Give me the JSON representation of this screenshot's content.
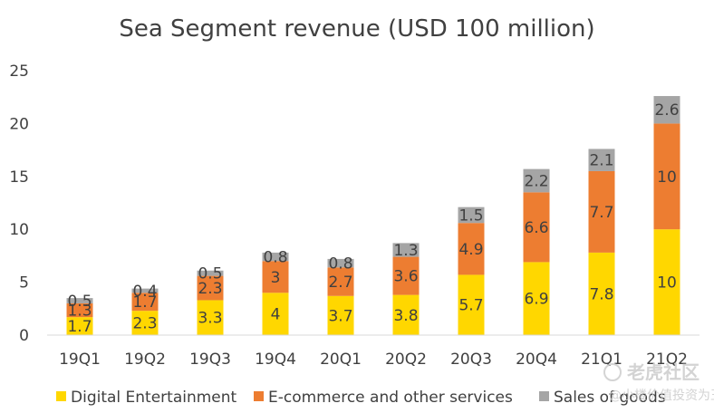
{
  "chart_data": {
    "type": "bar",
    "stacked": true,
    "title": "Sea Segment revenue (USD 100 million)",
    "categories": [
      "19Q1",
      "19Q2",
      "19Q3",
      "19Q4",
      "20Q1",
      "20Q2",
      "20Q3",
      "20Q4",
      "21Q1",
      "21Q2"
    ],
    "series": [
      {
        "name": "Digital Entertainment",
        "color": "#FFD700",
        "values": [
          1.7,
          2.3,
          3.3,
          4,
          3.7,
          3.8,
          5.7,
          6.9,
          7.8,
          10
        ],
        "labels": [
          "1.7",
          "2.3",
          "3.3",
          "4",
          "3.7",
          "3.8",
          "5.7",
          "6.9",
          "7.8",
          "10"
        ]
      },
      {
        "name": "E-commerce and other services",
        "color": "#ED7D31",
        "values": [
          1.3,
          1.7,
          2.3,
          3,
          2.7,
          3.6,
          4.9,
          6.6,
          7.7,
          10
        ],
        "labels": [
          "1.3",
          "1.7",
          "2.3",
          "3",
          "2.7",
          "3.6",
          "4.9",
          "6.6",
          "7.7",
          "10"
        ]
      },
      {
        "name": "Sales of goods",
        "color": "#A5A5A5",
        "values": [
          0.5,
          0.4,
          0.5,
          0.8,
          0.8,
          1.3,
          1.5,
          2.2,
          2.1,
          2.6
        ],
        "labels": [
          "0.5",
          "0.4",
          "0.5",
          "0.8",
          "0.8",
          "1.3",
          "1.5",
          "2.2",
          "2.1",
          "2.6"
        ]
      }
    ],
    "ylim": [
      0,
      25
    ],
    "yticks": [
      "0",
      "5",
      "10",
      "15",
      "20",
      "25"
    ],
    "ytick_values": [
      0,
      5,
      10,
      15,
      20,
      25
    ],
    "grid": false,
    "legend_position": "bottom"
  },
  "watermark": {
    "logo_text": "老虎社区",
    "sub_text": "@小楼价值投资为王"
  }
}
